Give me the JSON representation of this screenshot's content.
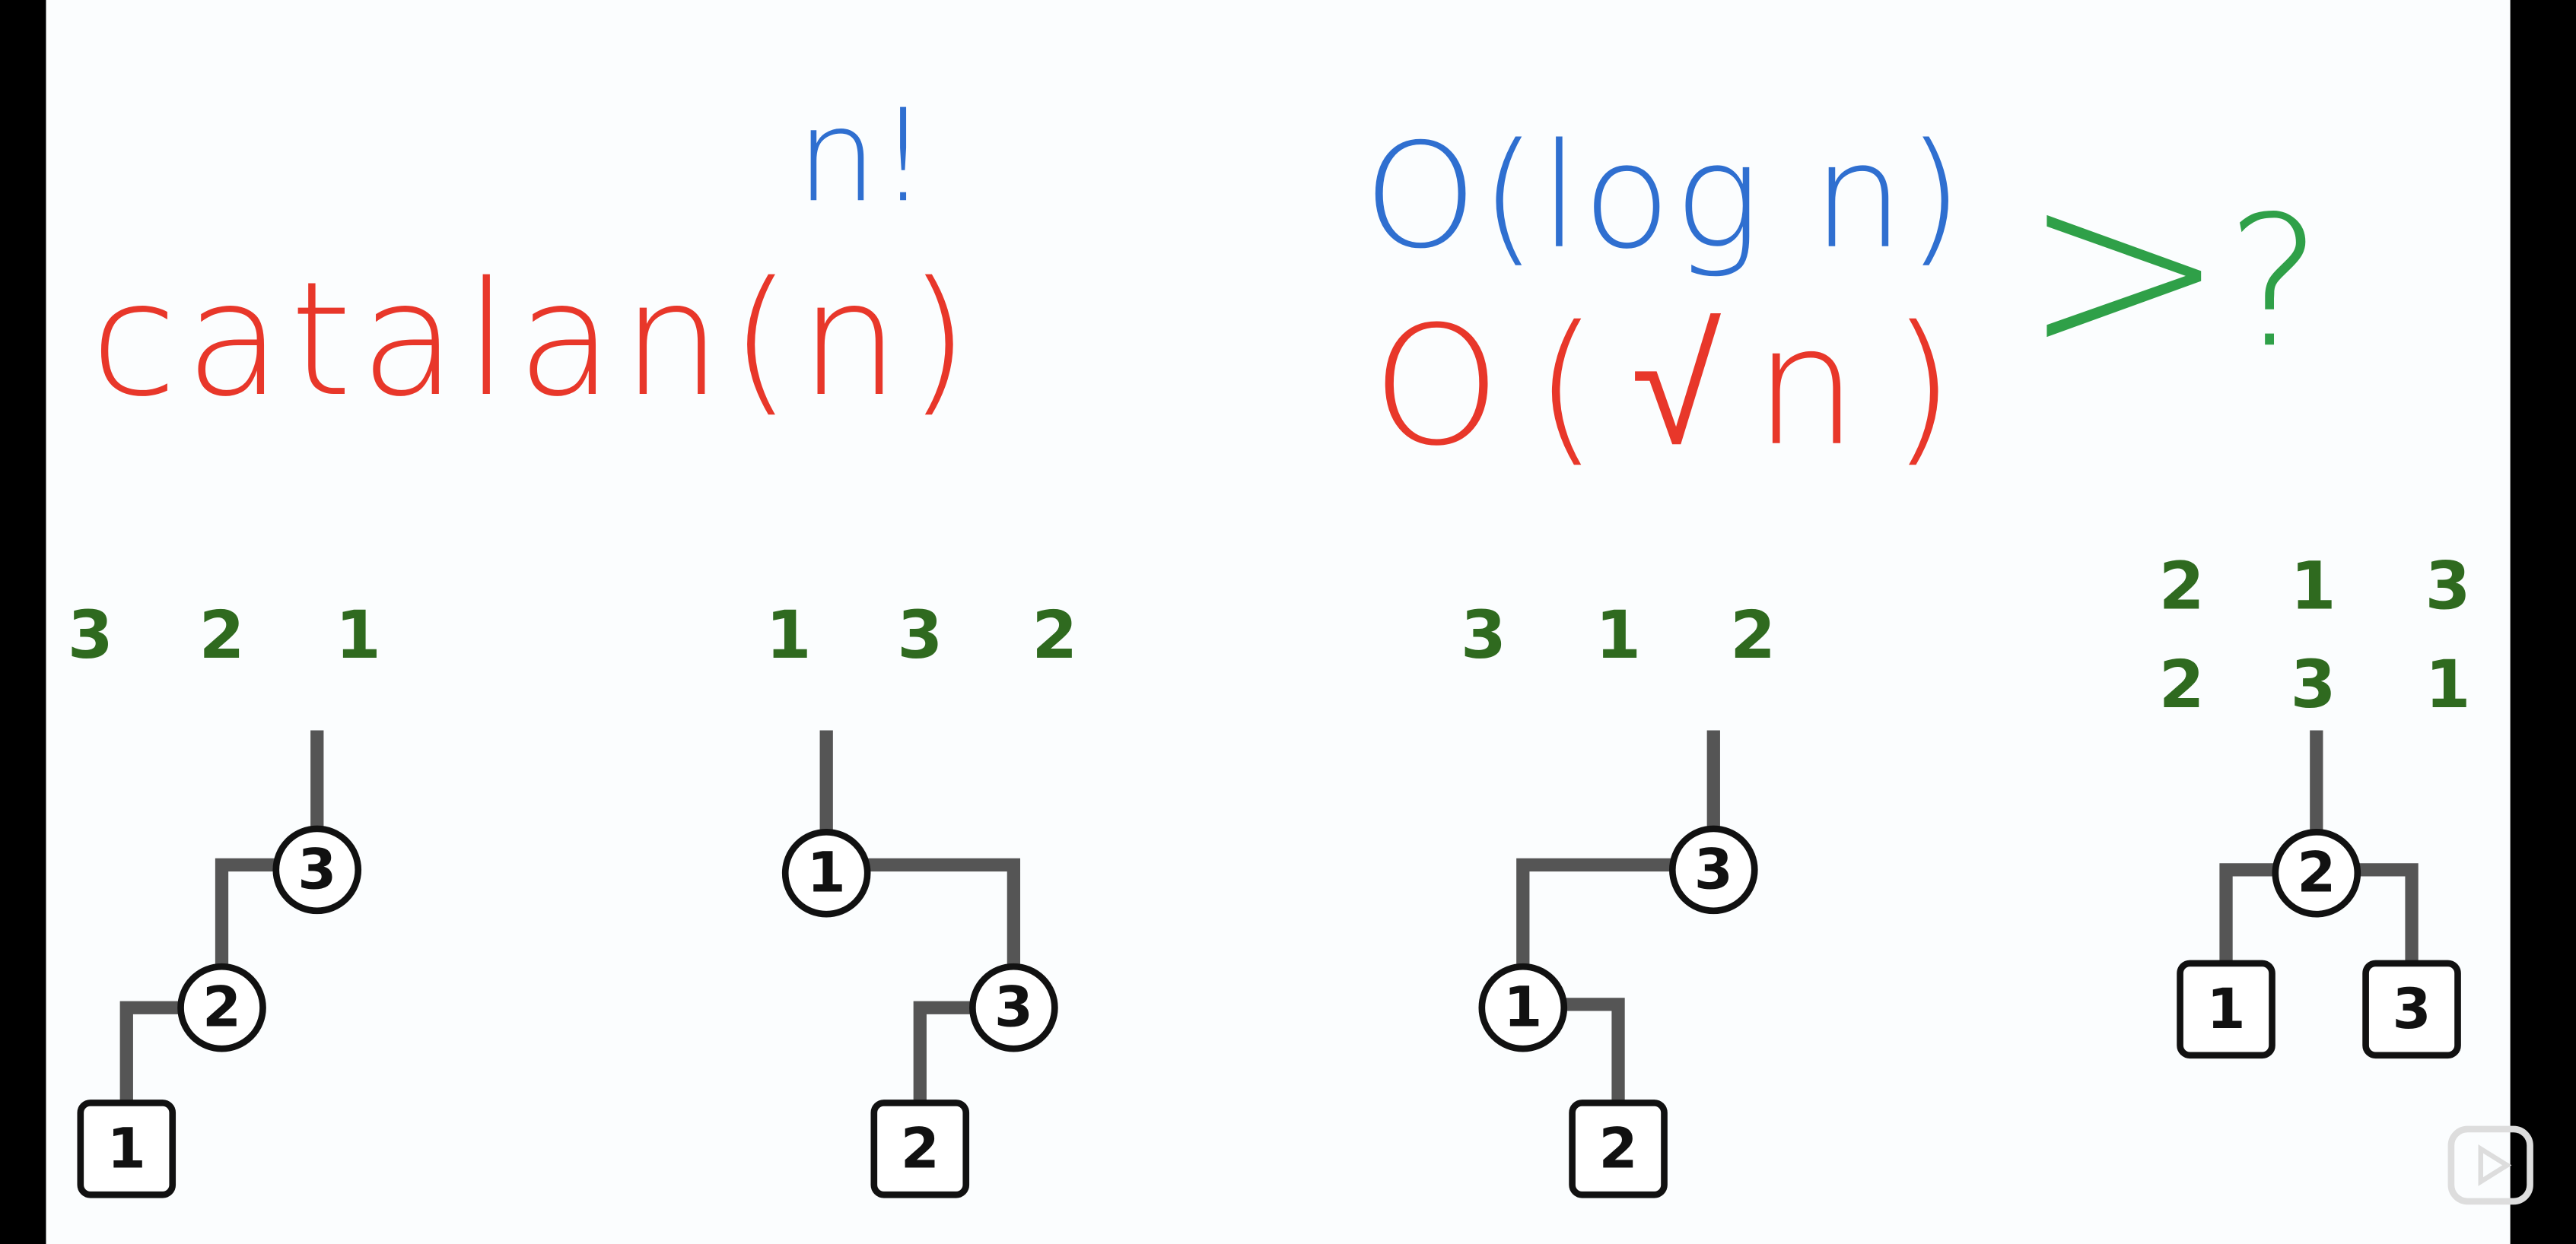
{
  "annotations": {
    "factorial": "n!",
    "catalan": "catalan(n)",
    "log": "O(log n)",
    "sqrt": "O(√n)",
    "compare": ">",
    "question": "?"
  },
  "trees": [
    {
      "sequences": [
        [
          3,
          2,
          1
        ]
      ],
      "nodes": [
        3,
        2,
        1
      ]
    },
    {
      "sequences": [
        [
          1,
          3,
          2
        ]
      ],
      "nodes": [
        1,
        3,
        2
      ]
    },
    {
      "sequences": [
        [
          3,
          1,
          2
        ]
      ],
      "nodes": [
        3,
        1,
        2
      ]
    },
    {
      "sequences": [
        [
          2,
          1,
          3
        ],
        [
          2,
          3,
          1
        ]
      ],
      "nodes": [
        2,
        1,
        3
      ]
    }
  ]
}
